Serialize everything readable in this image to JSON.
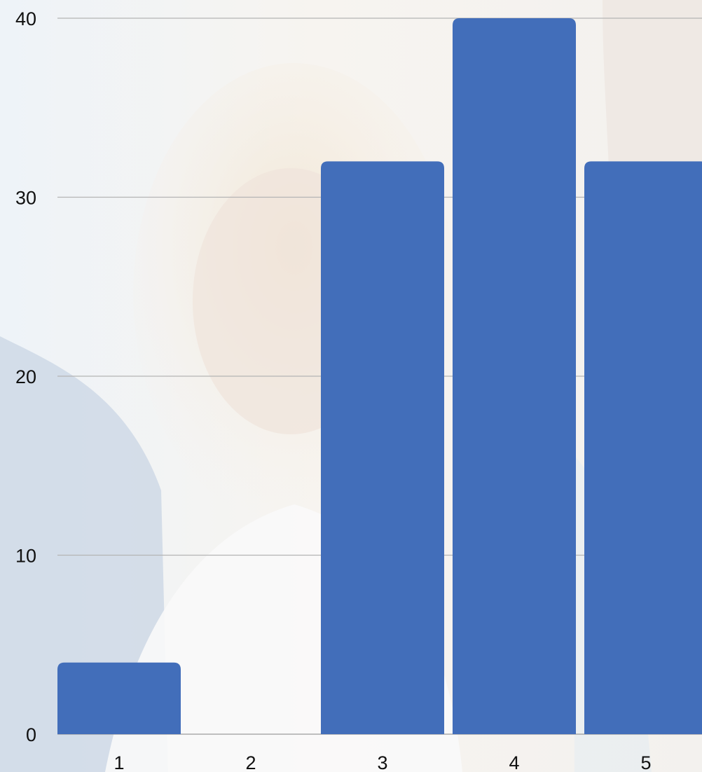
{
  "chart_data": {
    "type": "bar",
    "categories": [
      "1",
      "2",
      "3",
      "4",
      "5"
    ],
    "values": [
      4,
      0,
      32,
      40,
      32
    ],
    "ylim": [
      0,
      40
    ],
    "yticks": [
      0,
      10,
      20,
      30,
      40
    ],
    "grid": true,
    "legend": "none",
    "bar_color": "#426eba",
    "grid_color": "#b4b4b4"
  },
  "background": {
    "description_icon": "photo-medical-staff-icon"
  }
}
